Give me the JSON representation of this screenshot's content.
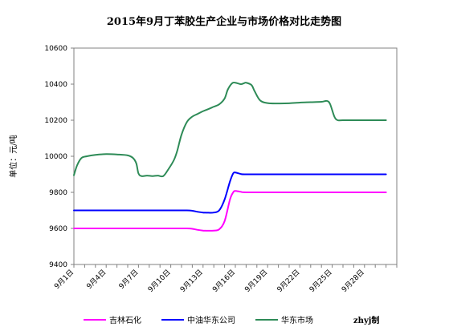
{
  "chart_data": {
    "type": "line",
    "title": "2015年9月丁苯胶生产企业与市场价格对比走势图",
    "ylabel": "单位：元/吨",
    "xlabel": "",
    "ylim": [
      9400,
      10600
    ],
    "yticks": [
      9400,
      9600,
      9800,
      10000,
      10200,
      10400,
      10600
    ],
    "xlim": [
      1,
      31
    ],
    "xtick_values": [
      1,
      4,
      7,
      10,
      13,
      16,
      19,
      22,
      25,
      28
    ],
    "xtick_labels": [
      "9月1日",
      "9月4日",
      "9月7日",
      "9月10日",
      "9月13日",
      "9月16日",
      "9月19日",
      "9月22日",
      "9月25日",
      "9月28日"
    ],
    "grid": false,
    "legend_position": "bottom",
    "credit": "zhyj制",
    "series": [
      {
        "name": "吉林石化",
        "color": "#ff00ff",
        "x": [
          1,
          4,
          7,
          10,
          11.5,
          12,
          12.5,
          13,
          13.5,
          14,
          14.5,
          15,
          15.5,
          15.8,
          16,
          16.5,
          17,
          20,
          25,
          28,
          30
        ],
        "y": [
          9600,
          9600,
          9600,
          9600,
          9600,
          9598,
          9592,
          9588,
          9587,
          9588,
          9595,
          9640,
          9760,
          9800,
          9808,
          9803,
          9800,
          9800,
          9800,
          9800,
          9800
        ]
      },
      {
        "name": "中油华东公司",
        "color": "#0000ff",
        "x": [
          1,
          4,
          7,
          10,
          11.5,
          12,
          12.5,
          13,
          13.5,
          14,
          14.5,
          15,
          15.5,
          15.8,
          16,
          16.5,
          17,
          20,
          25,
          28,
          30
        ],
        "y": [
          9700,
          9700,
          9700,
          9700,
          9700,
          9698,
          9692,
          9688,
          9687,
          9688,
          9700,
          9760,
          9860,
          9905,
          9910,
          9902,
          9900,
          9900,
          9900,
          9900,
          9900
        ]
      },
      {
        "name": "华东市场",
        "color": "#2e8b57",
        "x": [
          1,
          1.3,
          1.7,
          2.2,
          3,
          4,
          5,
          6,
          6.5,
          6.8,
          7,
          7.3,
          7.8,
          8.3,
          8.8,
          9.3,
          9.8,
          10.3,
          10.6,
          11,
          11.5,
          12,
          12.5,
          13,
          13.5,
          14,
          14.5,
          15,
          15.3,
          15.7,
          16,
          16.5,
          16.8,
          17,
          17.5,
          17.8,
          18.3,
          19,
          20,
          21,
          22,
          23,
          24,
          24.5,
          24.8,
          25.2,
          25.5,
          26,
          28,
          30
        ],
        "y": [
          9895,
          9950,
          9990,
          10000,
          10008,
          10012,
          10010,
          10005,
          9990,
          9960,
          9905,
          9890,
          9893,
          9890,
          9893,
          9890,
          9930,
          9980,
          10030,
          10120,
          10190,
          10220,
          10235,
          10250,
          10262,
          10275,
          10288,
          10320,
          10370,
          10405,
          10408,
          10400,
          10405,
          10408,
          10395,
          10360,
          10310,
          10295,
          10293,
          10294,
          10298,
          10300,
          10302,
          10307,
          10290,
          10220,
          10200,
          10200,
          10200,
          10200
        ]
      }
    ]
  }
}
